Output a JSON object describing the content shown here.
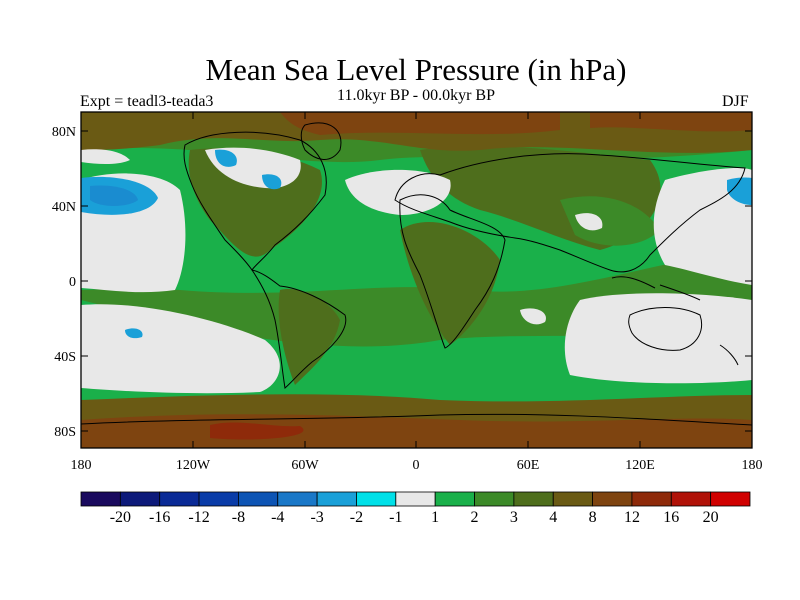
{
  "title": "Mean Sea Level Pressure (in hPa)",
  "subtitle": "11.0kyr BP - 00.0kyr BP",
  "experiment_label": "Expt = teadl3-teada3",
  "season_label": "DJF",
  "lat_ticks": [
    "80N",
    "40N",
    "0",
    "40S",
    "80S"
  ],
  "lon_ticks": [
    "180",
    "120W",
    "60W",
    "0",
    "60E",
    "120E",
    "180"
  ],
  "colorbar": {
    "colors": [
      "#1a0a5e",
      "#0d1a7a",
      "#0a2a96",
      "#0a3ca8",
      "#0d54b4",
      "#1a78c8",
      "#1aa0d8",
      "#00e0e8",
      "#e8e8e8",
      "#1ab04a",
      "#3c8a28",
      "#4e6e1c",
      "#6a5a14",
      "#7e4410",
      "#8e2a0a",
      "#b01208",
      "#d00000"
    ],
    "labels": [
      "-20",
      "-16",
      "-12",
      "-8",
      "-4",
      "-3",
      "-2",
      "-1",
      "1",
      "2",
      "3",
      "4",
      "8",
      "12",
      "16",
      "20"
    ]
  }
}
